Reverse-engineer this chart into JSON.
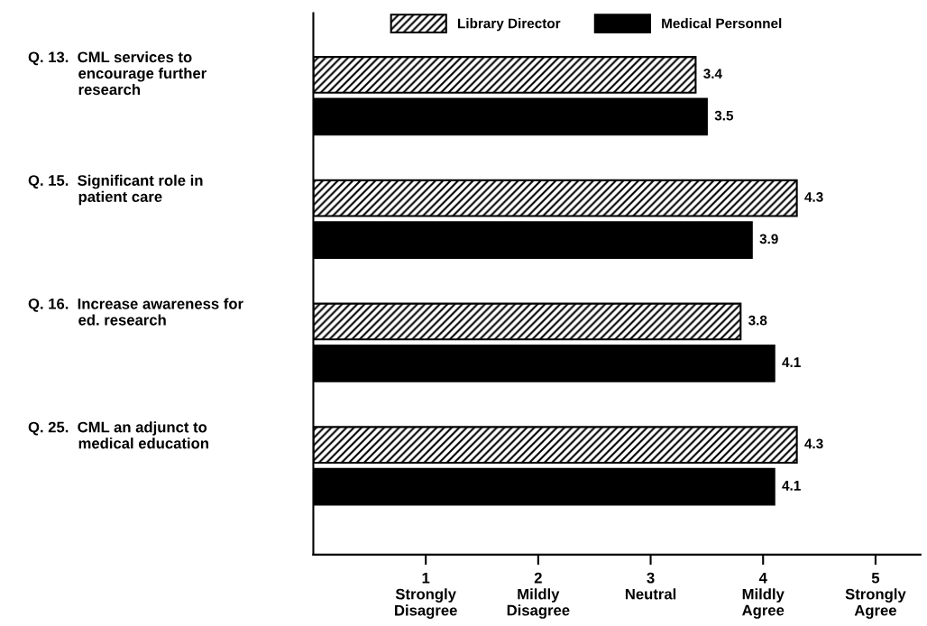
{
  "chart_data": {
    "type": "bar",
    "orientation": "horizontal",
    "categories": [
      "Q. 13.  CML services to\n            encourage further\n            research",
      "Q. 15.  Significant role in\n            patient care",
      "Q. 16.  Increase awareness for\n            ed. research",
      "Q. 25.  CML an adjunct to\n            medical education"
    ],
    "series": [
      {
        "name": "Library Director",
        "color": "#000000",
        "values": [
          3.4,
          4.3,
          3.8,
          4.3
        ]
      },
      {
        "name": "Medical Personnel",
        "color": "#000000",
        "values": [
          3.5,
          3.9,
          4.1,
          4.1
        ]
      }
    ],
    "xlim": [
      0,
      5.4
    ],
    "xticks": [
      {
        "value": 1,
        "label": "1\nStrongly\nDisagree"
      },
      {
        "value": 2,
        "label": "2\nMildly\nDisagree"
      },
      {
        "value": 3,
        "label": "3\nNeutral"
      },
      {
        "value": 4,
        "label": "4\nMildly\nAgree"
      },
      {
        "value": 5,
        "label": "5\nStrongly\nAgree"
      }
    ],
    "data_labels": true,
    "legend": "top",
    "grid": false
  }
}
